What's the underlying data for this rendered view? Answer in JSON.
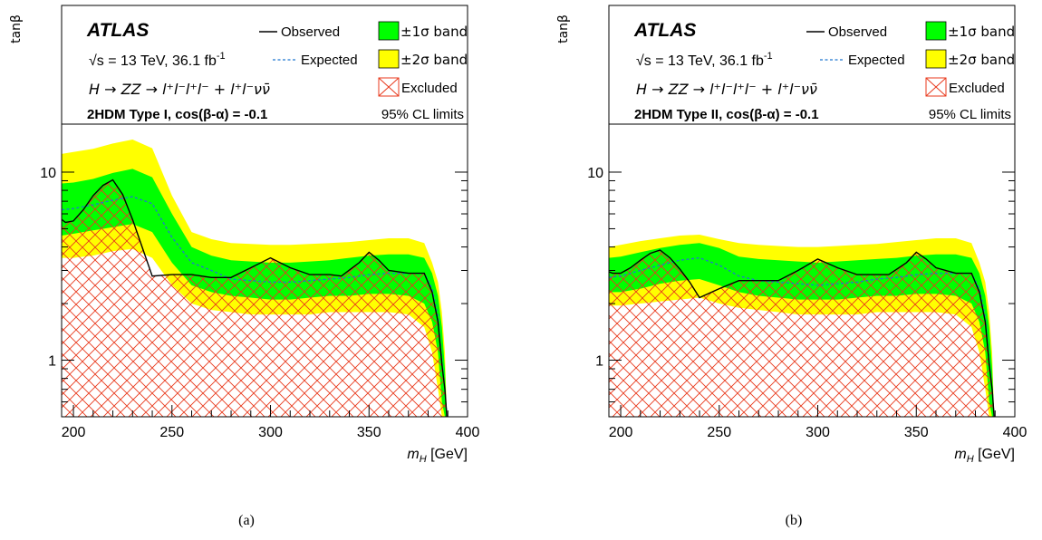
{
  "captions": [
    "(a)",
    "(b)"
  ],
  "chart_data": [
    {
      "type": "area",
      "title": "2HDM Type I, cos(β-α) = -0.1",
      "experiment": "ATLAS",
      "energy_text": "√s = 13 TeV, 36.1 fb",
      "lumi_exponent": "-1",
      "process_text": "H → ZZ → l⁺l⁻l⁺l⁻ + l⁺l⁻νν̄",
      "cl_text": "95% CL limits",
      "xlabel": "m_H [GeV]",
      "xlabel_main": "m",
      "xlabel_sub": "H",
      "xlabel_unit": " [GeV]",
      "ylabel": "tanβ",
      "xlim": [
        194,
        400
      ],
      "ylim": [
        0.5,
        18
      ],
      "yscale": "log",
      "x_ticks": [
        200,
        250,
        300,
        350,
        400
      ],
      "y_ticks": [
        1,
        10
      ],
      "legend": {
        "observed": "Observed",
        "expected": "Expected",
        "band1": "±1σ band",
        "band2": "±2σ band",
        "excluded": "Excluded"
      },
      "colors": {
        "band1": "#00ff00",
        "band2": "#ffff00",
        "observed": "#000000",
        "expected": "#1f77d0",
        "excluded": "#e8391c"
      },
      "series": [
        {
          "name": "Observed",
          "x": [
            194,
            196,
            200,
            205,
            210,
            215,
            220,
            225,
            230,
            240,
            250,
            260,
            270,
            280,
            290,
            300,
            310,
            320,
            330,
            336,
            345,
            350,
            355,
            360,
            370,
            378,
            382,
            385,
            387,
            388.5,
            389.5
          ],
          "y": [
            5.6,
            5.4,
            5.5,
            6.3,
            7.5,
            8.5,
            9.1,
            7.6,
            5.6,
            2.8,
            2.85,
            2.85,
            2.75,
            2.75,
            3.1,
            3.5,
            3.1,
            2.85,
            2.85,
            2.8,
            3.3,
            3.75,
            3.4,
            3.0,
            2.9,
            2.9,
            2.3,
            1.6,
            0.95,
            0.7,
            0.5
          ]
        },
        {
          "name": "Expected",
          "x": [
            194,
            200,
            210,
            220,
            230,
            240,
            250,
            260,
            270,
            280,
            290,
            300,
            310,
            320,
            330,
            340,
            350,
            360,
            370,
            378,
            382,
            385,
            387,
            388.5,
            389.5
          ],
          "y": [
            6.3,
            6.4,
            6.7,
            7.1,
            7.4,
            6.8,
            4.5,
            3.3,
            3.0,
            2.7,
            2.65,
            2.6,
            2.6,
            2.65,
            2.7,
            2.75,
            2.85,
            2.9,
            2.9,
            2.9,
            2.4,
            1.7,
            1.0,
            0.7,
            0.5
          ]
        },
        {
          "name": "±1σ band",
          "x": [
            194,
            200,
            210,
            220,
            230,
            240,
            250,
            260,
            270,
            280,
            290,
            300,
            310,
            320,
            330,
            340,
            350,
            360,
            370,
            378,
            382,
            385,
            387,
            388.5,
            389.5
          ],
          "upper": [
            8.7,
            8.8,
            9.2,
            9.9,
            10.4,
            9.4,
            6.0,
            4.0,
            3.6,
            3.4,
            3.35,
            3.3,
            3.3,
            3.35,
            3.4,
            3.5,
            3.6,
            3.65,
            3.65,
            3.5,
            2.9,
            2.2,
            1.5,
            0.9,
            0.5
          ],
          "lower": [
            4.6,
            4.7,
            4.9,
            5.1,
            5.3,
            4.8,
            3.3,
            2.5,
            2.3,
            2.2,
            2.15,
            2.1,
            2.1,
            2.15,
            2.2,
            2.2,
            2.25,
            2.25,
            2.2,
            2.0,
            1.6,
            1.1,
            0.6,
            0.5,
            0.5
          ]
        },
        {
          "name": "±2σ band",
          "x": [
            194,
            200,
            210,
            220,
            230,
            240,
            250,
            260,
            270,
            280,
            290,
            300,
            310,
            320,
            330,
            340,
            350,
            360,
            370,
            378,
            382,
            385,
            387,
            388.5,
            389.5
          ],
          "upper": [
            12.5,
            12.8,
            13.3,
            14.2,
            14.9,
            13.4,
            7.5,
            4.8,
            4.4,
            4.2,
            4.15,
            4.1,
            4.1,
            4.15,
            4.2,
            4.25,
            4.35,
            4.45,
            4.45,
            4.2,
            3.3,
            2.6,
            1.8,
            1.1,
            0.5
          ],
          "lower": [
            3.5,
            3.5,
            3.6,
            3.8,
            3.9,
            3.5,
            2.5,
            2.0,
            1.85,
            1.8,
            1.75,
            1.75,
            1.75,
            1.75,
            1.8,
            1.8,
            1.8,
            1.8,
            1.75,
            1.5,
            1.1,
            0.7,
            0.5,
            0.5,
            0.5
          ]
        }
      ]
    },
    {
      "type": "area",
      "title": "2HDM Type II, cos(β-α) = -0.1",
      "experiment": "ATLAS",
      "energy_text": "√s = 13 TeV, 36.1 fb",
      "lumi_exponent": "-1",
      "process_text": "H → ZZ → l⁺l⁻l⁺l⁻ + l⁺l⁻νν̄",
      "cl_text": "95% CL limits",
      "xlabel": "m_H [GeV]",
      "xlabel_main": "m",
      "xlabel_sub": "H",
      "xlabel_unit": " [GeV]",
      "ylabel": "tanβ",
      "xlim": [
        194,
        400
      ],
      "ylim": [
        0.5,
        18
      ],
      "yscale": "log",
      "x_ticks": [
        200,
        250,
        300,
        350,
        400
      ],
      "y_ticks": [
        1,
        10
      ],
      "legend": {
        "observed": "Observed",
        "expected": "Expected",
        "band1": "±1σ band",
        "band2": "±2σ band",
        "excluded": "Excluded"
      },
      "colors": {
        "band1": "#00ff00",
        "band2": "#ffff00",
        "observed": "#000000",
        "expected": "#1f77d0",
        "excluded": "#e8391c"
      },
      "series": [
        {
          "name": "Observed",
          "x": [
            194,
            196,
            200,
            205,
            210,
            215,
            220,
            225,
            230,
            235,
            240,
            250,
            260,
            270,
            280,
            290,
            300,
            310,
            320,
            330,
            336,
            345,
            350,
            355,
            360,
            370,
            378,
            382,
            385,
            387,
            388.5,
            389.5
          ],
          "y": [
            2.95,
            2.9,
            2.9,
            3.1,
            3.4,
            3.7,
            3.85,
            3.5,
            3.05,
            2.6,
            2.15,
            2.4,
            2.65,
            2.65,
            2.65,
            3.0,
            3.45,
            3.1,
            2.85,
            2.85,
            2.85,
            3.3,
            3.75,
            3.45,
            3.1,
            2.9,
            2.9,
            2.3,
            1.6,
            0.95,
            0.7,
            0.5
          ]
        },
        {
          "name": "Expected",
          "x": [
            194,
            200,
            210,
            220,
            230,
            240,
            250,
            260,
            270,
            280,
            290,
            300,
            310,
            320,
            330,
            340,
            350,
            360,
            370,
            378,
            382,
            385,
            387,
            388.5,
            389.5
          ],
          "y": [
            2.75,
            2.8,
            3.0,
            3.2,
            3.4,
            3.5,
            3.2,
            2.8,
            2.65,
            2.6,
            2.55,
            2.5,
            2.55,
            2.6,
            2.7,
            2.75,
            2.85,
            2.9,
            2.9,
            2.9,
            2.4,
            1.7,
            1.0,
            0.7,
            0.5
          ]
        },
        {
          "name": "±1σ band",
          "x": [
            194,
            200,
            210,
            220,
            230,
            240,
            250,
            260,
            270,
            280,
            290,
            300,
            310,
            320,
            330,
            340,
            350,
            360,
            370,
            378,
            382,
            385,
            387,
            388.5,
            389.5
          ],
          "upper": [
            3.5,
            3.55,
            3.75,
            3.95,
            4.1,
            4.2,
            3.95,
            3.55,
            3.45,
            3.4,
            3.35,
            3.3,
            3.35,
            3.4,
            3.45,
            3.5,
            3.6,
            3.65,
            3.65,
            3.5,
            2.9,
            2.2,
            1.5,
            0.9,
            0.5
          ],
          "lower": [
            2.3,
            2.3,
            2.4,
            2.55,
            2.65,
            2.7,
            2.5,
            2.3,
            2.2,
            2.15,
            2.1,
            2.1,
            2.1,
            2.15,
            2.2,
            2.2,
            2.25,
            2.25,
            2.2,
            2.0,
            1.6,
            1.1,
            0.6,
            0.5,
            0.5
          ]
        },
        {
          "name": "±2σ band",
          "x": [
            194,
            200,
            210,
            220,
            230,
            240,
            250,
            260,
            270,
            280,
            290,
            300,
            310,
            320,
            330,
            340,
            350,
            360,
            370,
            378,
            382,
            385,
            387,
            388.5,
            389.5
          ],
          "upper": [
            4.0,
            4.1,
            4.3,
            4.45,
            4.6,
            4.65,
            4.4,
            4.2,
            4.1,
            4.05,
            4.0,
            4.0,
            4.05,
            4.1,
            4.15,
            4.25,
            4.35,
            4.45,
            4.45,
            4.2,
            3.3,
            2.6,
            1.8,
            1.1,
            0.5
          ],
          "lower": [
            1.95,
            1.95,
            2.0,
            2.05,
            2.1,
            2.15,
            2.0,
            1.9,
            1.85,
            1.8,
            1.75,
            1.75,
            1.75,
            1.75,
            1.8,
            1.8,
            1.8,
            1.8,
            1.75,
            1.5,
            1.1,
            0.7,
            0.5,
            0.5,
            0.5
          ]
        }
      ]
    }
  ]
}
